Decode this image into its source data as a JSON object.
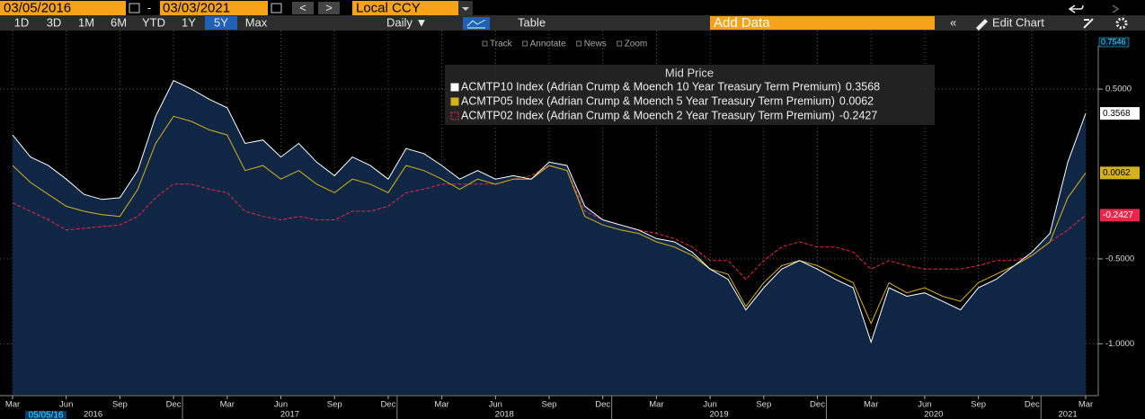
{
  "toolbar": {
    "start_date": "03/05/2016",
    "dash": "-",
    "end_date": "03/03/2021",
    "prev": "<",
    "next": ">",
    "currency": "Local CCY",
    "periods": [
      "1D",
      "3D",
      "1M",
      "6M",
      "YTD",
      "1Y",
      "5Y",
      "Max"
    ],
    "active_period": "5Y",
    "frequency": "Daily ▼",
    "table": "Table",
    "add_data": "Add Data",
    "collapse": "«",
    "edit_chart": "Edit Chart",
    "tools": [
      "Track",
      "Annotate",
      "News",
      "Zoom"
    ]
  },
  "chart_data": {
    "type": "line",
    "legend_title": "Mid Price",
    "cursor_label": "05/05/16",
    "x": [
      "2016-03",
      "2016-04",
      "2016-05",
      "2016-06",
      "2016-07",
      "2016-08",
      "2016-09",
      "2016-10",
      "2016-11",
      "2016-12",
      "2017-01",
      "2017-02",
      "2017-03",
      "2017-04",
      "2017-05",
      "2017-06",
      "2017-07",
      "2017-08",
      "2017-09",
      "2017-10",
      "2017-11",
      "2017-12",
      "2018-01",
      "2018-02",
      "2018-03",
      "2018-04",
      "2018-05",
      "2018-06",
      "2018-07",
      "2018-08",
      "2018-09",
      "2018-10",
      "2018-11",
      "2018-12",
      "2019-01",
      "2019-02",
      "2019-03",
      "2019-04",
      "2019-05",
      "2019-06",
      "2019-07",
      "2019-08",
      "2019-09",
      "2019-10",
      "2019-11",
      "2019-12",
      "2020-01",
      "2020-02",
      "2020-03",
      "2020-04",
      "2020-05",
      "2020-06",
      "2020-07",
      "2020-08",
      "2020-09",
      "2020-10",
      "2020-11",
      "2020-12",
      "2021-01",
      "2021-02",
      "2021-03"
    ],
    "xlim": [
      "2016-03",
      "2021-03"
    ],
    "xticks": [
      {
        "value": "2016-03",
        "label": "Mar"
      },
      {
        "value": "2016-06",
        "label": "Jun"
      },
      {
        "value": "2016-09",
        "label": "Sep"
      },
      {
        "value": "2016-12",
        "label": "Dec"
      },
      {
        "value": "2017-03",
        "label": "Mar"
      },
      {
        "value": "2017-06",
        "label": "Jun"
      },
      {
        "value": "2017-09",
        "label": "Sep"
      },
      {
        "value": "2017-12",
        "label": "Dec"
      },
      {
        "value": "2018-03",
        "label": "Mar"
      },
      {
        "value": "2018-06",
        "label": "Jun"
      },
      {
        "value": "2018-09",
        "label": "Sep"
      },
      {
        "value": "2018-12",
        "label": "Dec"
      },
      {
        "value": "2019-03",
        "label": "Mar"
      },
      {
        "value": "2019-06",
        "label": "Jun"
      },
      {
        "value": "2019-09",
        "label": "Sep"
      },
      {
        "value": "2019-12",
        "label": "Dec"
      },
      {
        "value": "2020-03",
        "label": "Mar"
      },
      {
        "value": "2020-06",
        "label": "Jun"
      },
      {
        "value": "2020-09",
        "label": "Sep"
      },
      {
        "value": "2020-12",
        "label": "Dec"
      },
      {
        "value": "2021-03",
        "label": "Mar"
      }
    ],
    "year_labels": [
      "2016",
      "2017",
      "2018",
      "2019",
      "2020",
      "2021"
    ],
    "ylim": [
      -1.3,
      0.7546
    ],
    "yticks": [
      {
        "value": 0.5,
        "label": "0.5000"
      },
      {
        "value": -0.5,
        "label": "-0.5000"
      },
      {
        "value": -1,
        "label": "-1.0000"
      }
    ],
    "grid": true,
    "series": [
      {
        "name": "ACMTP10 Index (Adrian Crump & Moench 10 Year Treasury Term Premium)",
        "color": "#ffffff",
        "area": "#0f2744",
        "values": [
          0.23,
          0.1,
          0.05,
          -0.03,
          -0.12,
          -0.15,
          -0.14,
          0.02,
          0.34,
          0.55,
          0.5,
          0.44,
          0.39,
          0.18,
          0.2,
          0.1,
          0.18,
          0.07,
          -0.01,
          0.1,
          0.05,
          -0.03,
          0.15,
          0.12,
          0.05,
          -0.03,
          0.02,
          -0.03,
          -0.01,
          -0.03,
          0.07,
          0.05,
          -0.19,
          -0.27,
          -0.3,
          -0.33,
          -0.38,
          -0.4,
          -0.46,
          -0.56,
          -0.62,
          -0.8,
          -0.67,
          -0.56,
          -0.51,
          -0.56,
          -0.62,
          -0.67,
          -0.99,
          -0.67,
          -0.72,
          -0.7,
          -0.75,
          -0.8,
          -0.67,
          -0.62,
          -0.54,
          -0.46,
          -0.35,
          0.07,
          0.3568
        ]
      },
      {
        "name": "ACMTP05 Index (Adrian Crump & Moench 5 Year Treasury Term Premium)",
        "color": "#d4b21c",
        "values": [
          0.05,
          -0.05,
          -0.12,
          -0.19,
          -0.22,
          -0.24,
          -0.25,
          -0.09,
          0.18,
          0.34,
          0.31,
          0.26,
          0.23,
          0.02,
          0.05,
          -0.03,
          0.02,
          -0.06,
          -0.11,
          -0.03,
          -0.06,
          -0.11,
          0.05,
          0.02,
          -0.03,
          -0.09,
          -0.03,
          -0.06,
          -0.03,
          -0.03,
          0.05,
          0.02,
          -0.25,
          -0.3,
          -0.33,
          -0.35,
          -0.4,
          -0.43,
          -0.48,
          -0.56,
          -0.59,
          -0.78,
          -0.64,
          -0.54,
          -0.51,
          -0.54,
          -0.59,
          -0.64,
          -0.88,
          -0.64,
          -0.7,
          -0.67,
          -0.72,
          -0.75,
          -0.64,
          -0.59,
          -0.54,
          -0.48,
          -0.4,
          -0.14,
          0.0062
        ]
      },
      {
        "name": "ACMTP02 Index (Adrian Crump & Moench 2 Year Treasury Term Premium)",
        "color": "#e8274b",
        "dashed": true,
        "values": [
          -0.17,
          -0.22,
          -0.27,
          -0.33,
          -0.32,
          -0.31,
          -0.3,
          -0.25,
          -0.14,
          -0.06,
          -0.06,
          -0.09,
          -0.11,
          -0.22,
          -0.25,
          -0.27,
          -0.25,
          -0.27,
          -0.27,
          -0.22,
          -0.22,
          -0.19,
          -0.11,
          -0.09,
          -0.06,
          -0.06,
          -0.06,
          -0.06,
          -0.03,
          -0.01,
          0.05,
          0.02,
          -0.22,
          -0.27,
          -0.3,
          -0.33,
          -0.35,
          -0.38,
          -0.43,
          -0.51,
          -0.51,
          -0.62,
          -0.51,
          -0.43,
          -0.4,
          -0.43,
          -0.43,
          -0.46,
          -0.56,
          -0.51,
          -0.54,
          -0.56,
          -0.56,
          -0.56,
          -0.54,
          -0.51,
          -0.51,
          -0.48,
          -0.4,
          -0.33,
          -0.2427
        ]
      }
    ]
  }
}
